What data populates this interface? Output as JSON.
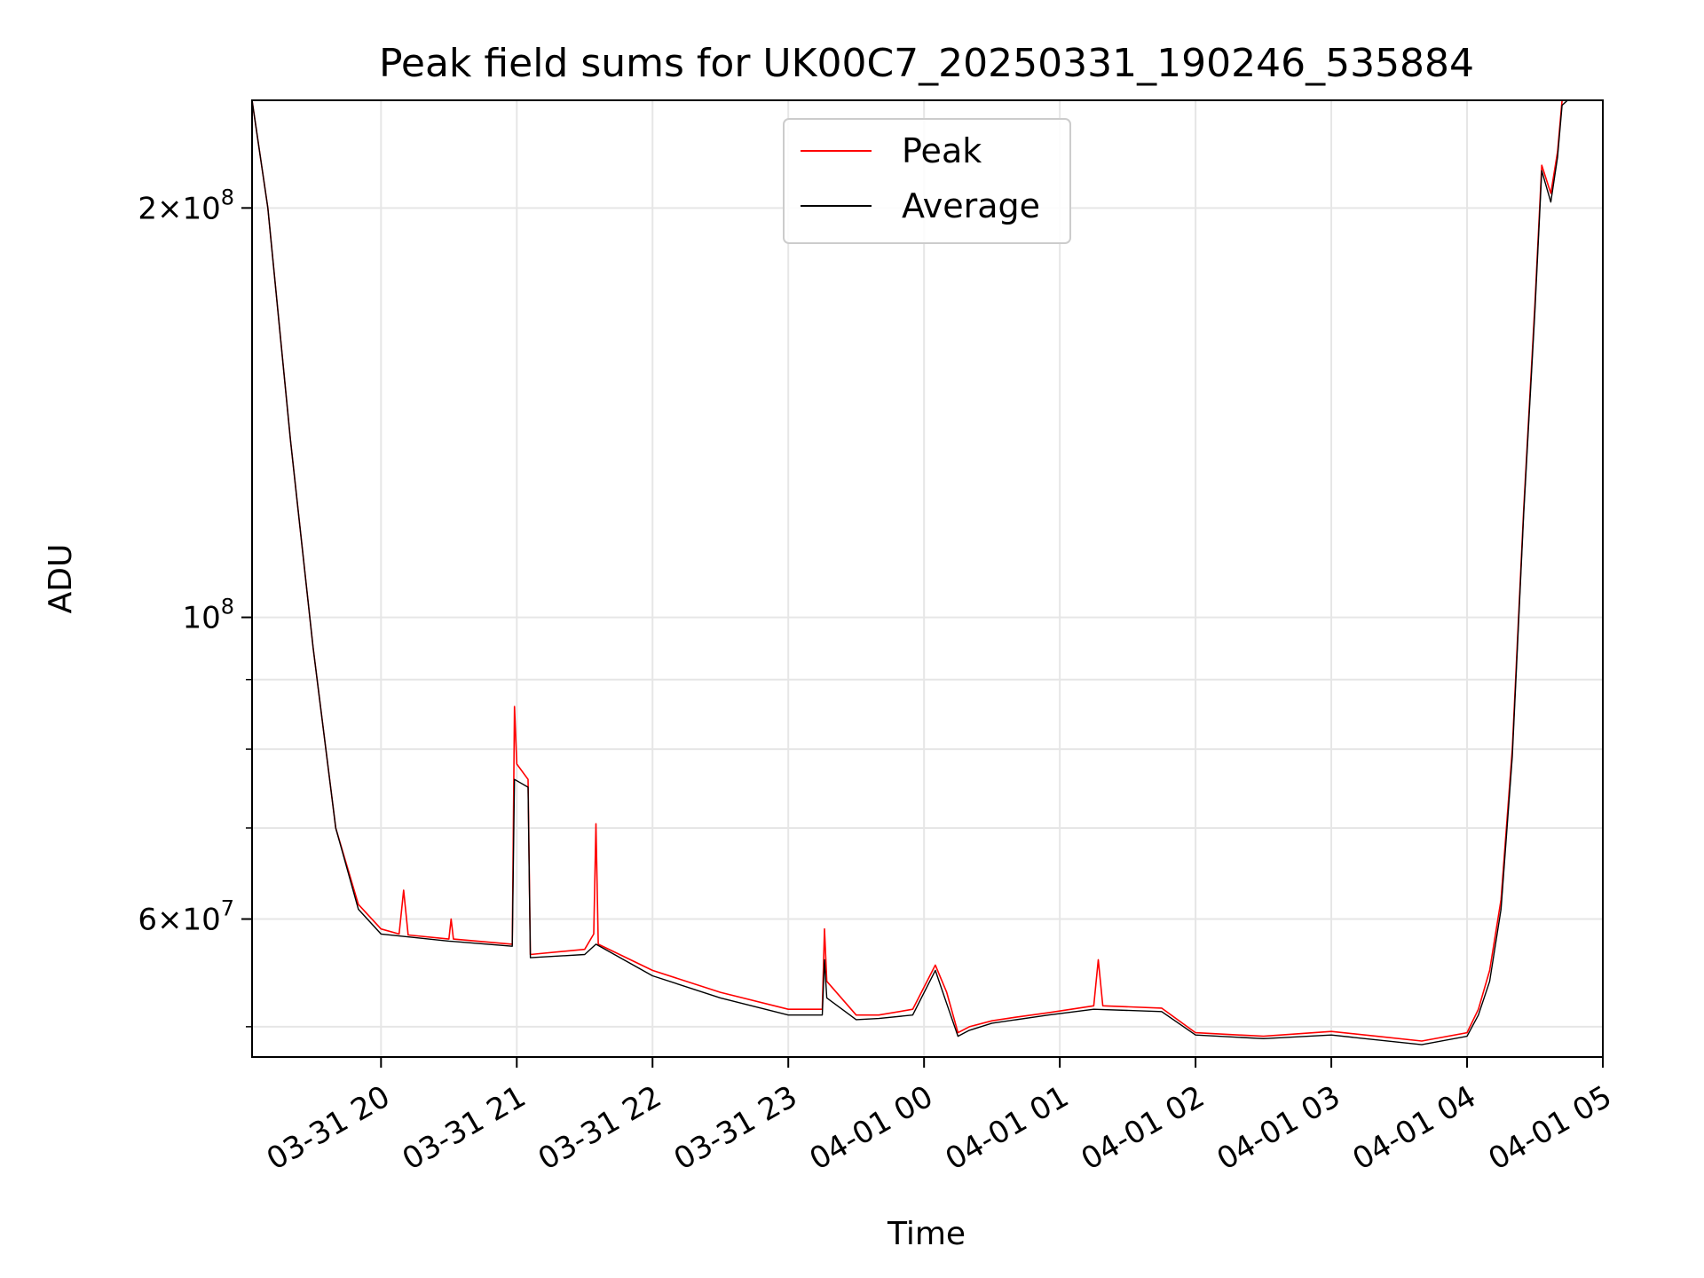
{
  "chart_data": {
    "type": "line",
    "title": "Peak field sums for UK00C7_20250331_190246_535884",
    "xlabel": "Time",
    "ylabel": "ADU",
    "x_scale": "time",
    "y_scale": "log",
    "xlim": [
      "2025-03-31 19:03",
      "2025-04-01 05:00"
    ],
    "ylim": [
      47500000,
      240000000
    ],
    "grid": true,
    "legend_position": "upper center",
    "x_ticks": [
      {
        "value": "2025-03-31 20:00",
        "label": "03-31 20"
      },
      {
        "value": "2025-03-31 21:00",
        "label": "03-31 21"
      },
      {
        "value": "2025-03-31 22:00",
        "label": "03-31 22"
      },
      {
        "value": "2025-03-31 23:00",
        "label": "03-31 23"
      },
      {
        "value": "2025-04-01 00:00",
        "label": "04-01 00"
      },
      {
        "value": "2025-04-01 01:00",
        "label": "04-01 01"
      },
      {
        "value": "2025-04-01 02:00",
        "label": "04-01 02"
      },
      {
        "value": "2025-04-01 03:00",
        "label": "04-01 03"
      },
      {
        "value": "2025-04-01 04:00",
        "label": "04-01 04"
      },
      {
        "value": "2025-04-01 05:00",
        "label": "04-01 05"
      }
    ],
    "y_major_ticks": [
      {
        "value": 60000000,
        "mantissa": "6",
        "exponent": "7"
      },
      {
        "value": 100000000,
        "mantissa": "",
        "exponent": "8"
      },
      {
        "value": 200000000,
        "mantissa": "2",
        "exponent": "8"
      }
    ],
    "y_minor_grid": [
      50000000,
      70000000,
      80000000,
      90000000
    ],
    "series": [
      {
        "name": "Peak",
        "color": "#ff0000",
        "x": [
          "2025-03-31 19:03",
          "2025-03-31 19:10",
          "2025-03-31 19:20",
          "2025-03-31 19:30",
          "2025-03-31 19:40",
          "2025-03-31 19:50",
          "2025-03-31 20:00",
          "2025-03-31 20:08",
          "2025-03-31 20:10",
          "2025-03-31 20:12",
          "2025-03-31 20:30",
          "2025-03-31 20:31",
          "2025-03-31 20:32",
          "2025-03-31 20:58",
          "2025-03-31 20:59",
          "2025-03-31 21:00",
          "2025-03-31 21:05",
          "2025-03-31 21:06",
          "2025-03-31 21:30",
          "2025-03-31 21:34",
          "2025-03-31 21:35",
          "2025-03-31 21:36",
          "2025-03-31 22:00",
          "2025-03-31 22:30",
          "2025-03-31 23:00",
          "2025-03-31 23:15",
          "2025-03-31 23:16",
          "2025-03-31 23:17",
          "2025-03-31 23:30",
          "2025-03-31 23:40",
          "2025-03-31 23:55",
          "2025-04-01 00:05",
          "2025-04-01 00:10",
          "2025-04-01 00:15",
          "2025-04-01 00:20",
          "2025-04-01 00:30",
          "2025-04-01 00:40",
          "2025-04-01 00:55",
          "2025-04-01 01:15",
          "2025-04-01 01:17",
          "2025-04-01 01:19",
          "2025-04-01 01:45",
          "2025-04-01 02:00",
          "2025-04-01 02:30",
          "2025-04-01 03:00",
          "2025-04-01 03:20",
          "2025-04-01 03:40",
          "2025-04-01 04:00",
          "2025-04-01 04:05",
          "2025-04-01 04:10",
          "2025-04-01 04:15",
          "2025-04-01 04:20",
          "2025-04-01 04:25",
          "2025-04-01 04:30",
          "2025-04-01 04:33",
          "2025-04-01 04:37",
          "2025-04-01 04:40",
          "2025-04-01 04:42",
          "2025-04-01 04:48",
          "2025-04-01 05:00"
        ],
        "y": [
          240000000,
          200000000,
          135000000,
          95000000,
          70000000,
          61500000,
          59000000,
          58500000,
          63000000,
          58400000,
          58000000,
          60000000,
          58000000,
          57500000,
          86000000,
          78000000,
          76000000,
          56500000,
          57000000,
          58500000,
          70500000,
          57500000,
          55000000,
          53000000,
          51500000,
          51500000,
          59000000,
          54000000,
          51000000,
          51000000,
          51500000,
          55500000,
          53000000,
          49500000,
          50000000,
          50500000,
          50800000,
          51200000,
          51800000,
          56000000,
          51800000,
          51600000,
          49500000,
          49200000,
          49600000,
          49200000,
          48800000,
          49500000,
          51500000,
          55000000,
          62000000,
          80000000,
          120000000,
          170000000,
          215000000,
          205000000,
          220000000,
          240000000,
          245000000,
          245000000
        ]
      },
      {
        "name": "Average",
        "color": "#000000",
        "x": [
          "2025-03-31 19:03",
          "2025-03-31 19:10",
          "2025-03-31 19:20",
          "2025-03-31 19:30",
          "2025-03-31 19:40",
          "2025-03-31 19:50",
          "2025-03-31 20:00",
          "2025-03-31 20:30",
          "2025-03-31 20:58",
          "2025-03-31 20:59",
          "2025-03-31 21:05",
          "2025-03-31 21:06",
          "2025-03-31 21:30",
          "2025-03-31 21:35",
          "2025-03-31 22:00",
          "2025-03-31 22:30",
          "2025-03-31 23:00",
          "2025-03-31 23:15",
          "2025-03-31 23:16",
          "2025-03-31 23:17",
          "2025-03-31 23:30",
          "2025-03-31 23:40",
          "2025-03-31 23:55",
          "2025-04-01 00:05",
          "2025-04-01 00:10",
          "2025-04-01 00:15",
          "2025-04-01 00:20",
          "2025-04-01 00:30",
          "2025-04-01 00:55",
          "2025-04-01 01:15",
          "2025-04-01 01:45",
          "2025-04-01 02:00",
          "2025-04-01 02:30",
          "2025-04-01 03:00",
          "2025-04-01 03:20",
          "2025-04-01 03:40",
          "2025-04-01 04:00",
          "2025-04-01 04:05",
          "2025-04-01 04:10",
          "2025-04-01 04:15",
          "2025-04-01 04:20",
          "2025-04-01 04:25",
          "2025-04-01 04:30",
          "2025-04-01 04:33",
          "2025-04-01 04:37",
          "2025-04-01 04:40",
          "2025-04-01 04:42",
          "2025-04-01 04:48",
          "2025-04-01 05:00"
        ],
        "y": [
          240000000,
          200000000,
          135000000,
          95000000,
          70000000,
          61000000,
          58500000,
          57800000,
          57300000,
          76000000,
          75000000,
          56200000,
          56500000,
          57500000,
          54500000,
          52500000,
          51000000,
          51000000,
          56000000,
          52500000,
          50600000,
          50700000,
          51000000,
          55000000,
          52000000,
          49200000,
          49700000,
          50300000,
          51000000,
          51500000,
          51300000,
          49300000,
          49000000,
          49300000,
          48900000,
          48500000,
          49200000,
          51000000,
          54000000,
          61000000,
          79000000,
          119000000,
          168000000,
          213000000,
          202000000,
          218000000,
          238000000,
          243000000,
          243000000
        ]
      }
    ]
  }
}
